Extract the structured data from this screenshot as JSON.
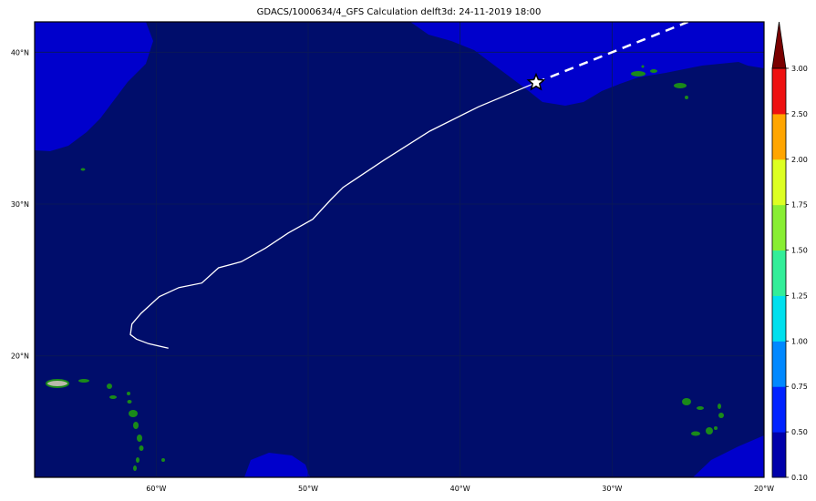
{
  "title": "GDACS/1000634/4_GFS Calculation delft3d: 24-11-2019 18:00",
  "map": {
    "lat_labels": [
      "40°N",
      "30°N",
      "20°N"
    ],
    "lon_labels": [
      "60°W",
      "50°W",
      "40°W",
      "30°W",
      "20°W"
    ],
    "lat_values": [
      40,
      30,
      20
    ],
    "lon_values": [
      -60,
      -50,
      -40,
      -30,
      -20
    ],
    "extent": {
      "lon_min": -68,
      "lon_max": -20,
      "lat_min": 12,
      "lat_max": 42
    },
    "ocean_color": "#000d6b",
    "shallow_color": "#0000cc",
    "track_color": "#ffffff",
    "track_past": [
      [
        -59.2,
        20.5
      ],
      [
        -60.5,
        20.8
      ],
      [
        -61.3,
        21.1
      ],
      [
        -61.7,
        21.4
      ],
      [
        -61.6,
        22.1
      ],
      [
        -61.0,
        22.8
      ],
      [
        -59.8,
        23.9
      ],
      [
        -58.5,
        24.5
      ],
      [
        -57.0,
        24.8
      ],
      [
        -55.9,
        25.8
      ],
      [
        -54.4,
        26.2
      ],
      [
        -52.8,
        27.1
      ],
      [
        -51.3,
        28.1
      ],
      [
        -49.7,
        29.0
      ],
      [
        -48.5,
        30.3
      ],
      [
        -47.7,
        31.1
      ],
      [
        -45.0,
        32.9
      ],
      [
        -42.0,
        34.8
      ],
      [
        -38.8,
        36.4
      ],
      [
        -35.0,
        38.0
      ]
    ],
    "track_forecast": [
      [
        -35.0,
        38.0
      ],
      [
        -25.0,
        42.0
      ]
    ],
    "current_position": [
      -35.0,
      38.0
    ],
    "current_icon": "star-icon"
  },
  "colorbar": {
    "levels": [
      "0.10",
      "0.50",
      "0.75",
      "1.00",
      "1.25",
      "1.50",
      "1.75",
      "2.00",
      "2.50",
      "3.00"
    ],
    "colors": [
      "#0000aa",
      "#0022ff",
      "#0088ff",
      "#00e0ee",
      "#33ee99",
      "#88ee33",
      "#ddff22",
      "#ffa500",
      "#ee1111",
      "#7a0000"
    ],
    "extend_color": "#7a0000"
  }
}
